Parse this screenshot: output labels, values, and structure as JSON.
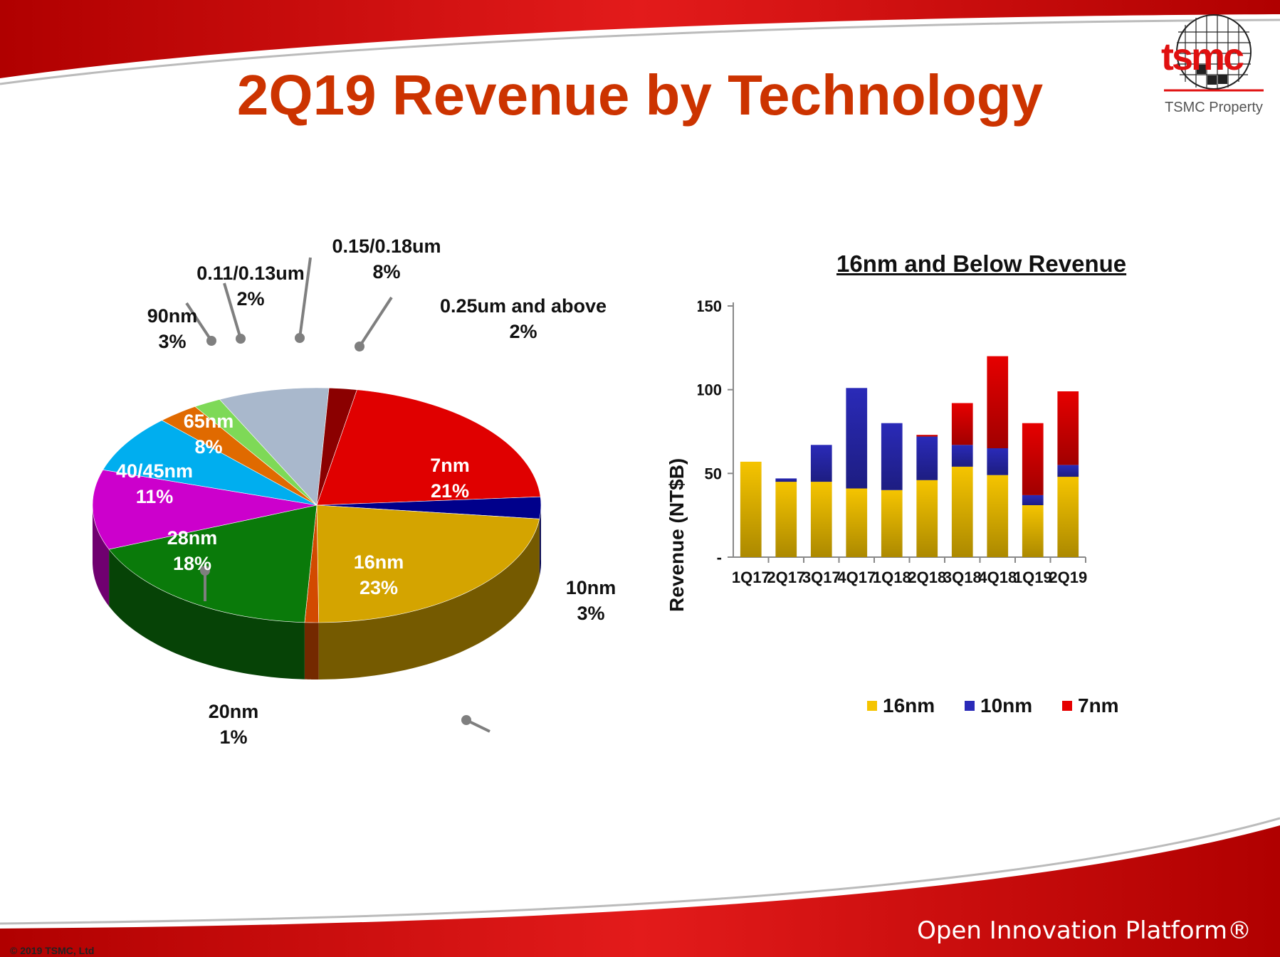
{
  "title": "2Q19 Revenue by Technology",
  "logo": {
    "text": "tsmc",
    "caption": "TSMC Property"
  },
  "footer": {
    "brand": "Open Innovation Platform®",
    "copyright": "© 2019 TSMC, Ltd"
  },
  "colors": {
    "title": "#cc3300",
    "brand_red": "#e01010"
  },
  "chart_data": [
    {
      "type": "pie",
      "title": "",
      "slices": [
        {
          "label": "7nm",
          "value_label": "21%",
          "value": 21,
          "color": "#e00000"
        },
        {
          "label": "10nm",
          "value_label": "3%",
          "value": 3,
          "color": "#00008b"
        },
        {
          "label": "16nm",
          "value_label": "23%",
          "value": 23,
          "color": "#d4a400"
        },
        {
          "label": "20nm",
          "value_label": "1%",
          "value": 1,
          "color": "#d24a00"
        },
        {
          "label": "28nm",
          "value_label": "18%",
          "value": 18,
          "color": "#0a7a0a"
        },
        {
          "label": "40/45nm",
          "value_label": "11%",
          "value": 11,
          "color": "#cc00cc"
        },
        {
          "label": "65nm",
          "value_label": "8%",
          "value": 8,
          "color": "#00aeef"
        },
        {
          "label": "90nm",
          "value_label": "3%",
          "value": 3,
          "color": "#e06a00"
        },
        {
          "label": "0.11/0.13um",
          "value_label": "2%",
          "value": 2,
          "color": "#7ed957"
        },
        {
          "label": "0.15/0.18um",
          "value_label": "8%",
          "value": 8,
          "color": "#a9b8cc"
        },
        {
          "label": "0.25um and above",
          "value_label": "2%",
          "value": 2,
          "color": "#8b0000"
        }
      ]
    },
    {
      "type": "bar",
      "stacked": true,
      "title": "16nm and Below Revenue",
      "xlabel": "",
      "ylabel": "Revenue (NT$B)",
      "ylim": [
        0,
        150
      ],
      "yticks": [
        "-",
        "50",
        "100",
        "150"
      ],
      "categories": [
        "1Q17",
        "2Q17",
        "3Q17",
        "4Q17",
        "1Q18",
        "2Q18",
        "3Q18",
        "4Q18",
        "1Q19",
        "2Q19"
      ],
      "series": [
        {
          "name": "16nm",
          "color": "#f5c400",
          "values": [
            57,
            45,
            45,
            41,
            40,
            46,
            54,
            49,
            31,
            48
          ]
        },
        {
          "name": "10nm",
          "color": "#2a2ab8",
          "values": [
            0,
            2,
            22,
            60,
            40,
            26,
            13,
            16,
            6,
            7
          ]
        },
        {
          "name": "7nm",
          "color": "#e60000",
          "values": [
            0,
            0,
            0,
            0,
            0,
            1,
            25,
            55,
            43,
            44
          ]
        }
      ],
      "legend": "bottom"
    }
  ]
}
